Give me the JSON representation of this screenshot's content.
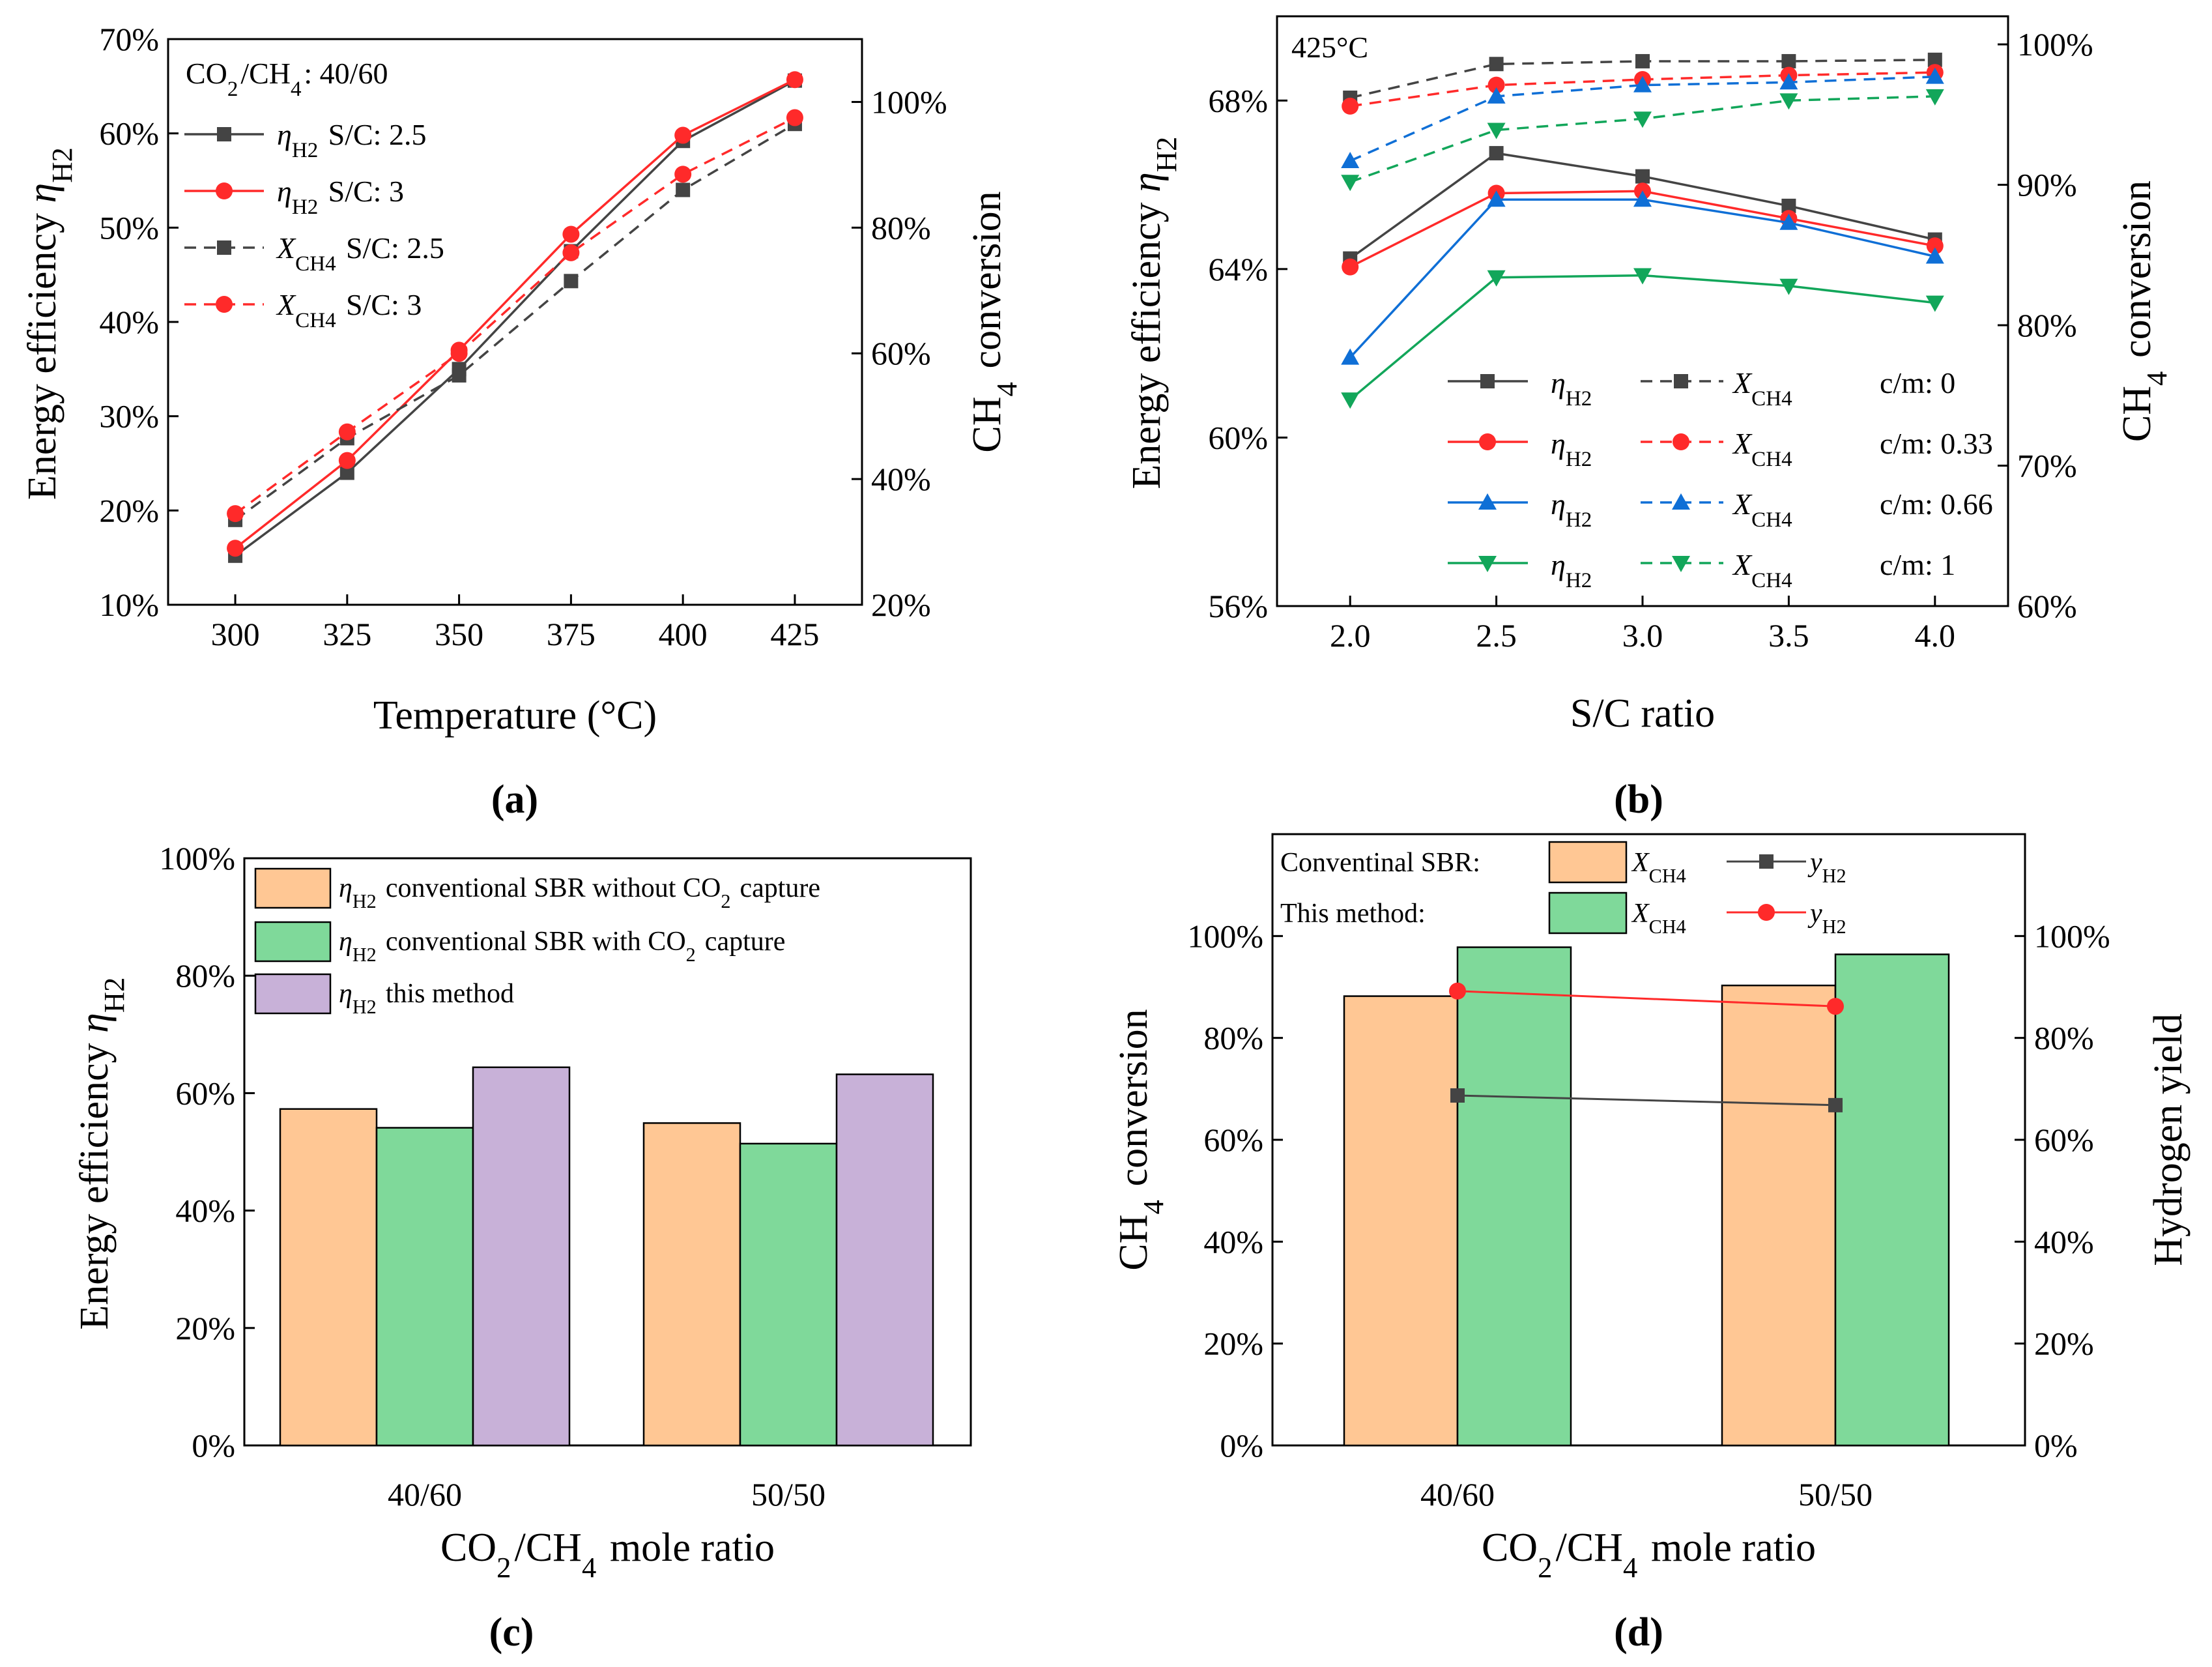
{
  "figure_title": "",
  "colors": {
    "black": "#444444",
    "red": "#ff2a2a",
    "blue": "#0f6fd6",
    "green": "#12a65a",
    "bar_orange": "#ffc794",
    "bar_green": "#7fd99a",
    "bar_purple": "#c8b1d8"
  },
  "chart_data": [
    {
      "panel": "a",
      "panel_label": "(a)",
      "type": "line",
      "xlabel": "Temperature (°C)",
      "ylabel_left": "Energy efficiency η_H2",
      "ylabel_right": "CH4 conversion",
      "annotation": "CO2/CH4: 40/60",
      "x": [
        300,
        325,
        350,
        375,
        400,
        425
      ],
      "x_ticks": [
        "300",
        "325",
        "350",
        "375",
        "400",
        "425"
      ],
      "xlim": [
        285,
        440
      ],
      "ylim_left": [
        10,
        70
      ],
      "yticks_left": [
        "10%",
        "20%",
        "30%",
        "40%",
        "50%",
        "60%",
        "70%"
      ],
      "ylim_right": [
        20,
        110
      ],
      "yticks_right": [
        "20%",
        "40%",
        "60%",
        "80%",
        "100%"
      ],
      "series": [
        {
          "name": "η_H2 S/C: 2.5",
          "sym": "η",
          "sub": "H2",
          "suffix": "S/C: 2.5",
          "axis": "left",
          "color": "#444444",
          "dash": false,
          "marker": "square",
          "values": [
            15.2,
            24.0,
            35.0,
            47.5,
            59.2,
            65.6
          ]
        },
        {
          "name": "η_H2 S/C: 3",
          "sym": "η",
          "sub": "H2",
          "suffix": "S/C: 3",
          "axis": "left",
          "color": "#ff2a2a",
          "dash": false,
          "marker": "circle",
          "values": [
            16.0,
            25.3,
            37.0,
            49.3,
            59.8,
            65.7
          ]
        },
        {
          "name": "X_CH4 S/C: 2.5",
          "sym": "X",
          "sub": "CH4",
          "suffix": "S/C: 2.5",
          "axis": "right",
          "color": "#444444",
          "dash": true,
          "marker": "square",
          "values": [
            33.5,
            46.5,
            56.5,
            71.5,
            86.0,
            96.5
          ]
        },
        {
          "name": "X_CH4 S/C: 3",
          "sym": "X",
          "sub": "CH4",
          "suffix": "S/C: 3",
          "axis": "right",
          "color": "#ff2a2a",
          "dash": true,
          "marker": "circle",
          "values": [
            34.5,
            47.5,
            60.0,
            76.0,
            88.5,
            97.5
          ]
        }
      ]
    },
    {
      "panel": "b",
      "panel_label": "(b)",
      "type": "line",
      "xlabel": "S/C ratio",
      "ylabel_left": "Energy efficiency η_H2",
      "ylabel_right": "CH4 conversion",
      "annotation": "425°C",
      "x": [
        2.0,
        2.5,
        3.0,
        3.5,
        4.0
      ],
      "x_ticks": [
        "2.0",
        "2.5",
        "3.0",
        "3.5",
        "4.0"
      ],
      "xlim": [
        1.75,
        4.25
      ],
      "ylim_left": [
        56,
        70
      ],
      "yticks_left": [
        "56%",
        "60%",
        "64%",
        "68%"
      ],
      "ylim_right": [
        60,
        102
      ],
      "yticks_right": [
        "60%",
        "70%",
        "80%",
        "90%",
        "100%"
      ],
      "series": [
        {
          "name": "η_H2 c/m: 0",
          "axis": "left",
          "color": "#444444",
          "dash": false,
          "marker": "square",
          "values": [
            64.25,
            66.75,
            66.2,
            65.5,
            64.7
          ]
        },
        {
          "name": "η_H2 c/m: 0.33",
          "axis": "left",
          "color": "#ff2a2a",
          "dash": false,
          "marker": "circle",
          "values": [
            64.05,
            65.8,
            65.85,
            65.2,
            64.55
          ]
        },
        {
          "name": "η_H2 c/m: 0.66",
          "axis": "left",
          "color": "#0f6fd6",
          "dash": false,
          "marker": "triangle-up",
          "values": [
            61.9,
            65.65,
            65.65,
            65.1,
            64.3
          ]
        },
        {
          "name": "η_H2 c/m: 1",
          "axis": "left",
          "color": "#12a65a",
          "dash": false,
          "marker": "triangle-down",
          "values": [
            60.9,
            63.8,
            63.85,
            63.6,
            63.2
          ]
        },
        {
          "name": "X_CH4 c/m: 0",
          "axis": "right",
          "color": "#444444",
          "dash": true,
          "marker": "square",
          "values": [
            96.2,
            98.6,
            98.8,
            98.8,
            98.9
          ]
        },
        {
          "name": "X_CH4 c/m: 0.33",
          "axis": "right",
          "color": "#ff2a2a",
          "dash": true,
          "marker": "circle",
          "values": [
            95.6,
            97.1,
            97.5,
            97.8,
            98.0
          ]
        },
        {
          "name": "X_CH4 c/m: 0.66",
          "axis": "right",
          "color": "#0f6fd6",
          "dash": true,
          "marker": "triangle-up",
          "values": [
            91.7,
            96.3,
            97.1,
            97.3,
            97.7
          ]
        },
        {
          "name": "X_CH4 c/m: 1",
          "axis": "right",
          "color": "#12a65a",
          "dash": true,
          "marker": "triangle-down",
          "values": [
            90.2,
            93.9,
            94.7,
            96.0,
            96.3
          ]
        }
      ],
      "legend": [
        {
          "idx_eta": 0,
          "idx_x": 4,
          "label": "c/m: 0"
        },
        {
          "idx_eta": 1,
          "idx_x": 5,
          "label": "c/m: 0.33"
        },
        {
          "idx_eta": 2,
          "idx_x": 6,
          "label": "c/m: 0.66"
        },
        {
          "idx_eta": 3,
          "idx_x": 7,
          "label": "c/m: 1"
        }
      ],
      "legend_eta": "η",
      "legend_eta_sub": "H2",
      "legend_x": "X",
      "legend_x_sub": "CH4"
    },
    {
      "panel": "c",
      "panel_label": "(c)",
      "type": "bar",
      "xlabel": "CO2/CH4 mole ratio",
      "ylabel_left": "Energy efficiency η_H2",
      "categories": [
        "40/60",
        "50/50"
      ],
      "ylim": [
        0,
        100
      ],
      "yticks": [
        "0%",
        "20%",
        "40%",
        "60%",
        "80%",
        "100%"
      ],
      "series": [
        {
          "name": "η_H2 conventional SBR without CO2 capture",
          "text_a": "conventional SBR without CO",
          "text_b": "capture",
          "sub2": "2",
          "color": "#ffc794",
          "values": [
            57.3,
            54.9
          ]
        },
        {
          "name": "η_H2 conventional SBR with CO2 capture",
          "text_a": "conventional SBR with CO",
          "text_b": "capture",
          "sub2": "2",
          "color": "#7fd99a",
          "values": [
            54.1,
            51.4
          ]
        },
        {
          "name": "η_H2 this method",
          "text_a": "this method",
          "text_b": "",
          "sub2": "",
          "color": "#c8b1d8",
          "values": [
            64.4,
            63.2
          ]
        }
      ]
    },
    {
      "panel": "d",
      "panel_label": "(d)",
      "type": "bar",
      "xlabel": "CO2/CH4 mole ratio",
      "ylabel_left": "CH4 conversion",
      "ylabel_right": "Hydrogen yield",
      "categories": [
        "40/60",
        "50/50"
      ],
      "ylim": [
        0,
        120
      ],
      "yticks_left": [
        "0%",
        "20%",
        "40%",
        "60%",
        "80%",
        "100%"
      ],
      "yticks_right": [
        "0%",
        "20%",
        "40%",
        "60%",
        "80%",
        "100%"
      ],
      "legend_row1": "Conventinal SBR:",
      "legend_row2": "This method:",
      "bars": [
        {
          "name": "Conventinal SBR X_CH4",
          "color": "#ffc794",
          "values": [
            88.2,
            90.3
          ]
        },
        {
          "name": "This method X_CH4",
          "color": "#7fd99a",
          "values": [
            97.8,
            96.4
          ]
        }
      ],
      "lines": [
        {
          "name": "Conventinal SBR y_H2",
          "color": "#444444",
          "marker": "square",
          "values": [
            68.7,
            66.8
          ]
        },
        {
          "name": "This method y_H2",
          "color": "#ff2a2a",
          "marker": "circle",
          "values": [
            89.2,
            86.2
          ]
        }
      ]
    }
  ]
}
